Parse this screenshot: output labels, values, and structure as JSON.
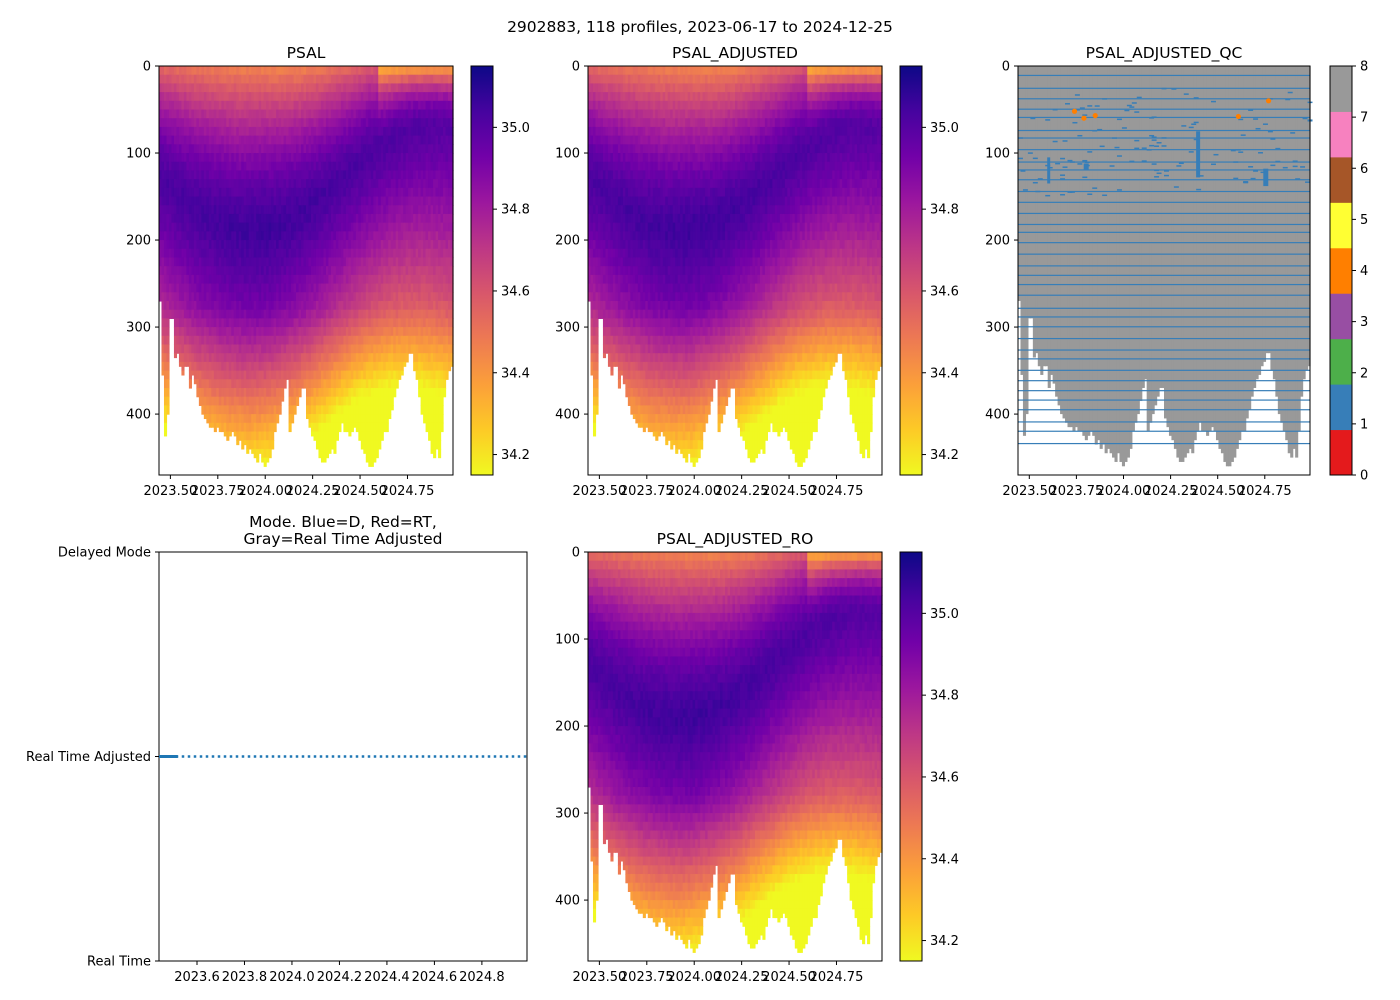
{
  "suptitle": "2902883, 118 profiles, 2023-06-17 to 2024-12-25",
  "colors": {
    "plasma": [
      "#0d0887",
      "#46039f",
      "#7201a8",
      "#9c179e",
      "#bd3786",
      "#d8576b",
      "#ed7953",
      "#fb9f3a",
      "#fdca26",
      "#f0f921"
    ],
    "qc_classes": [
      "#e41a1c",
      "#377eb8",
      "#4daf4a",
      "#984ea3",
      "#ff7f00",
      "#ffff33",
      "#a65628",
      "#f781bf",
      "#999999"
    ],
    "mode_line": "#1f77b4"
  },
  "chart_data": [
    {
      "id": "psal",
      "type": "heatmap",
      "title": "PSAL",
      "ylim": [
        470,
        0
      ],
      "xlim": [
        2023.44,
        2024.99
      ],
      "xticks": [
        "2023.50",
        "2023.75",
        "2024.00",
        "2024.25",
        "2024.50",
        "2024.75"
      ],
      "yticks": [
        "0",
        "100",
        "200",
        "300",
        "400"
      ],
      "colorbar": {
        "range": [
          34.15,
          35.15
        ],
        "ticks": [
          "34.2",
          "34.4",
          "34.6",
          "34.8",
          "35.0"
        ]
      },
      "profiles": 118,
      "time_range": [
        "2023-06-17",
        "2024-12-25"
      ],
      "profile_max_depth_dbar": [
        270,
        355,
        425,
        400,
        290,
        290,
        335,
        330,
        345,
        355,
        345,
        345,
        370,
        355,
        365,
        380,
        390,
        400,
        405,
        410,
        415,
        415,
        420,
        415,
        420,
        420,
        425,
        430,
        425,
        420,
        425,
        435,
        430,
        440,
        435,
        445,
        440,
        445,
        450,
        455,
        445,
        455,
        460,
        455,
        450,
        440,
        420,
        410,
        400,
        385,
        370,
        360,
        420,
        410,
        400,
        390,
        380,
        370,
        370,
        405,
        415,
        425,
        430,
        440,
        450,
        455,
        455,
        450,
        445,
        440,
        445,
        430,
        420,
        410,
        420,
        420,
        425,
        420,
        415,
        420,
        430,
        440,
        445,
        455,
        460,
        460,
        455,
        450,
        440,
        430,
        420,
        420,
        405,
        395,
        380,
        370,
        360,
        355,
        345,
        340,
        330,
        330,
        350,
        360,
        380,
        400,
        410,
        420,
        430,
        445,
        450,
        440,
        450,
        420,
        380,
        360,
        350,
        345
      ]
    },
    {
      "id": "psal_adjusted",
      "type": "heatmap",
      "title": "PSAL_ADJUSTED",
      "ylim": [
        470,
        0
      ],
      "xlim": [
        2023.44,
        2024.99
      ],
      "xticks": [
        "2023.50",
        "2023.75",
        "2024.00",
        "2024.25",
        "2024.50",
        "2024.75"
      ],
      "yticks": [
        "0",
        "100",
        "200",
        "300",
        "400"
      ],
      "colorbar": {
        "range": [
          34.15,
          35.15
        ],
        "ticks": [
          "34.2",
          "34.4",
          "34.6",
          "34.8",
          "35.0"
        ]
      }
    },
    {
      "id": "psal_adjusted_qc",
      "type": "heatmap",
      "title": "PSAL_ADJUSTED_QC",
      "ylim": [
        470,
        0
      ],
      "xlim": [
        2023.44,
        2024.99
      ],
      "xticks": [
        "2023.50",
        "2023.75",
        "2024.00",
        "2024.25",
        "2024.50",
        "2024.75"
      ],
      "yticks": [
        "0",
        "100",
        "200",
        "300",
        "400"
      ],
      "colorbar": {
        "range": [
          0,
          8
        ],
        "ticks": [
          "0",
          "1",
          "2",
          "3",
          "4",
          "5",
          "6",
          "7",
          "8"
        ]
      },
      "qc_flag4_points": [
        [
          2023.74,
          52
        ],
        [
          2023.79,
          60
        ],
        [
          2023.85,
          57
        ],
        [
          2024.61,
          58
        ],
        [
          2024.77,
          40
        ]
      ]
    },
    {
      "id": "mode",
      "type": "line",
      "title": "Mode. Blue=D, Red=RT,\nGray=Real Time Adjusted",
      "title_lines": [
        "Mode. Blue=D, Red=RT,",
        "Gray=Real Time Adjusted"
      ],
      "xlim": [
        2023.44,
        2024.99
      ],
      "ylim": [
        0,
        2
      ],
      "xticks": [
        "2023.6",
        "2023.8",
        "2024.0",
        "2024.2",
        "2024.4",
        "2024.6",
        "2024.8"
      ],
      "yticks": [
        "Delayed Mode",
        "Real Time Adjusted",
        "Real Time"
      ],
      "series": [
        {
          "name": "mode",
          "y": 1,
          "x_range": [
            2023.46,
            2024.99
          ]
        }
      ]
    },
    {
      "id": "psal_adjusted_ro",
      "type": "heatmap",
      "title": "PSAL_ADJUSTED_RO",
      "ylim": [
        470,
        0
      ],
      "xlim": [
        2023.44,
        2024.99
      ],
      "xticks": [
        "2023.50",
        "2023.75",
        "2024.00",
        "2024.25",
        "2024.50",
        "2024.75"
      ],
      "yticks": [
        "0",
        "100",
        "200",
        "300",
        "400"
      ],
      "colorbar": {
        "range": [
          34.15,
          35.15
        ],
        "ticks": [
          "34.2",
          "34.4",
          "34.6",
          "34.8",
          "35.0"
        ]
      }
    }
  ]
}
